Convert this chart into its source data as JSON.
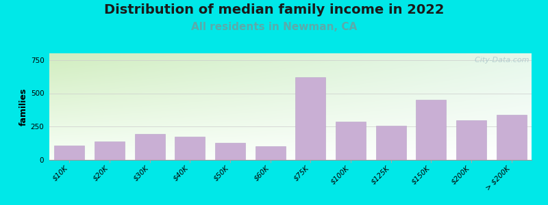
{
  "title": "Distribution of median family income in 2022",
  "subtitle": "All residents in Newman, CA",
  "ylabel": "families",
  "categories": [
    "$10K",
    "$20K",
    "$30K",
    "$40K",
    "$50K",
    "$60K",
    "$75K",
    "$100K",
    "$125K",
    "$150K",
    "$200K",
    "> $200K"
  ],
  "values": [
    110,
    140,
    195,
    175,
    130,
    105,
    620,
    285,
    255,
    450,
    300,
    340
  ],
  "bar_color": "#c9afd4",
  "bar_edge_color": "#b8a0c8",
  "background_outer": "#00e8e8",
  "plot_bg_top_left": "#d8eec0",
  "plot_bg_right": "#e8f5ee",
  "plot_bg_bottom": "#ffffff",
  "title_fontsize": 14,
  "subtitle_fontsize": 11,
  "subtitle_color": "#5aabab",
  "ylabel_fontsize": 9,
  "tick_fontsize": 7.5,
  "yticks": [
    0,
    250,
    500,
    750
  ],
  "ylim": [
    0,
    800
  ],
  "watermark": "  City-Data.com"
}
